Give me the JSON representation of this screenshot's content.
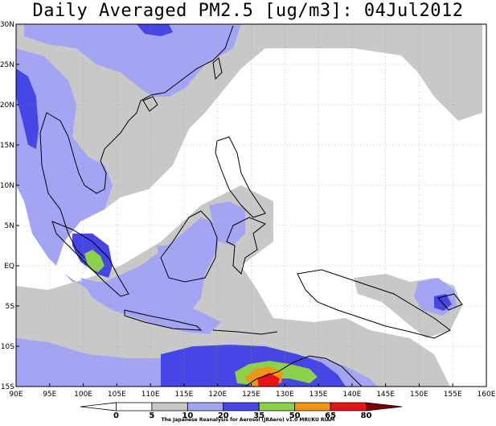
{
  "title": "Daily Averaged PM2.5 [ug/m3]: 04Jul2012",
  "credit": "The Japanese Reanalysis for Aerosol (JRAero) v1.0 MRI/KU RIAM",
  "map": {
    "lon_range": [
      90,
      160
    ],
    "lat_range": [
      -15,
      30
    ],
    "x_ticks": [
      "90E",
      "95E",
      "100E",
      "105E",
      "110E",
      "115E",
      "120E",
      "125E",
      "130E",
      "135E",
      "140E",
      "145E",
      "150E",
      "155E",
      "160E"
    ],
    "y_ticks": [
      "30N",
      "25N",
      "20N",
      "15N",
      "10N",
      "5N",
      "EQ",
      "5S",
      "10S",
      "15S"
    ],
    "grid": "dotted"
  },
  "colorbar": {
    "levels": [
      "0",
      "5",
      "10",
      "20",
      "35",
      "50",
      "65",
      "80"
    ],
    "colors": [
      "#ffffff",
      "#ffffff",
      "#c8c8c8",
      "#a4a4f4",
      "#4646e6",
      "#8cd248",
      "#f09614",
      "#e61414",
      "#7a0000"
    ]
  }
}
